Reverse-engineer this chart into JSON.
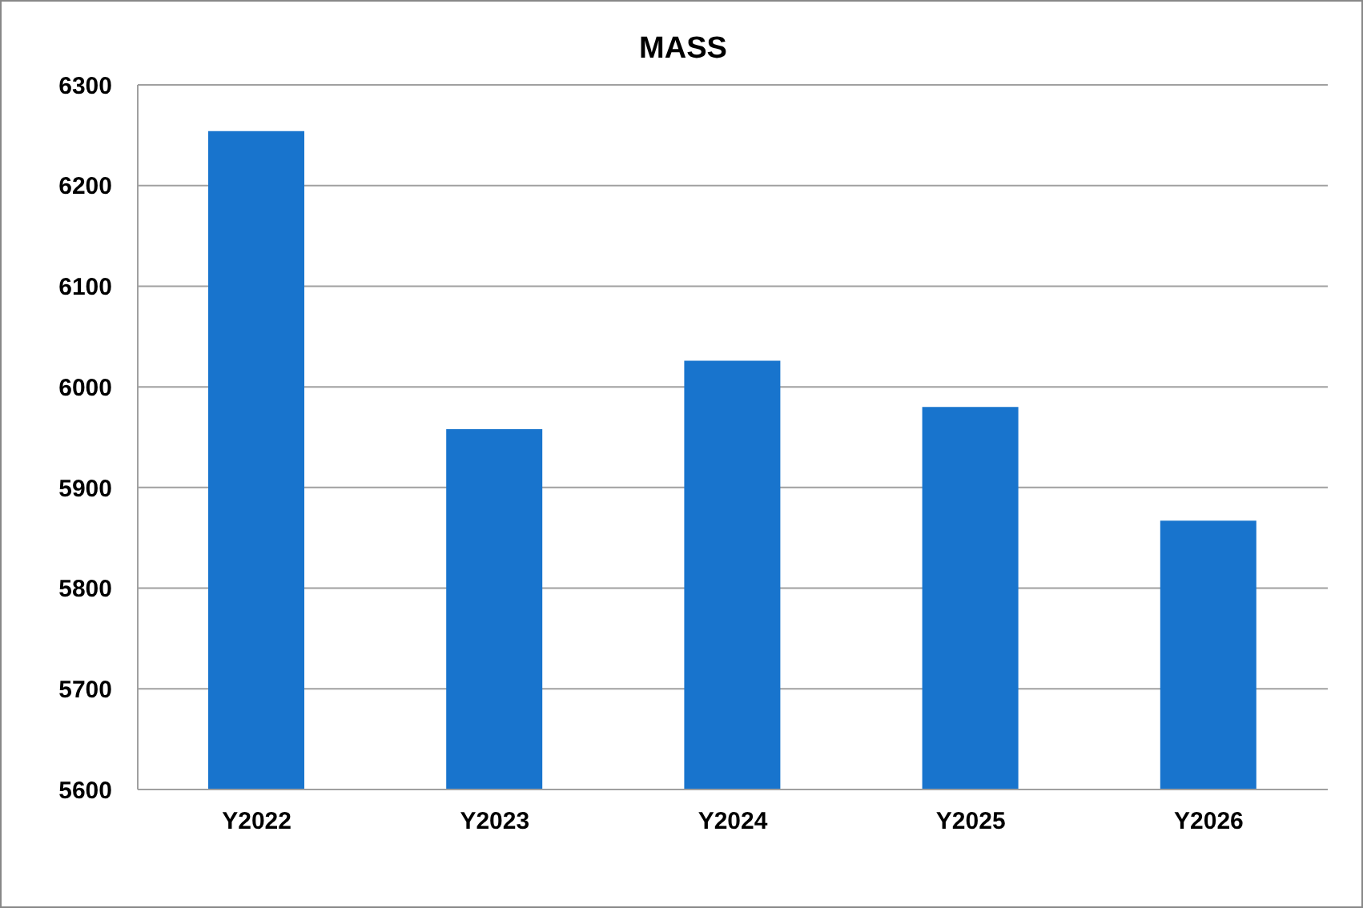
{
  "chart_data": {
    "type": "bar",
    "title": "MASS",
    "categories": [
      "Y2022",
      "Y2023",
      "Y2024",
      "Y2025",
      "Y2026"
    ],
    "values": [
      6254,
      5958,
      6026,
      5980,
      5867
    ],
    "color": "#1874cd",
    "ylim": [
      5600,
      6300
    ],
    "yticks": [
      5600,
      5700,
      5800,
      5900,
      6000,
      6100,
      6200,
      6300
    ],
    "grid": "y"
  }
}
